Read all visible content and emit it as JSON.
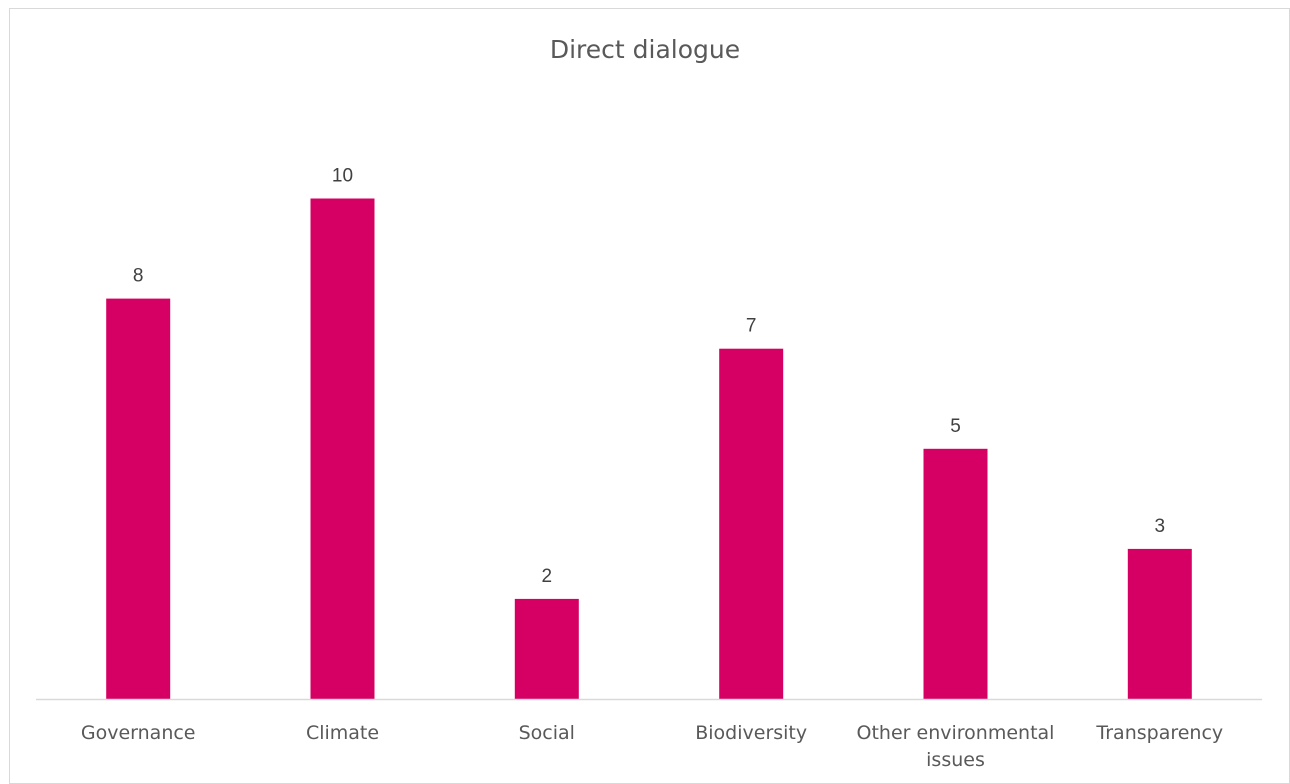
{
  "chart_data": {
    "type": "bar",
    "title": "Direct dialogue",
    "categories": [
      "Governance",
      "Climate",
      "Social",
      "Biodiversity",
      "Other environmental issues",
      "Transparency"
    ],
    "category_lines": [
      [
        "Governance"
      ],
      [
        "Climate"
      ],
      [
        "Social"
      ],
      [
        "Biodiversity"
      ],
      [
        "Other environmental",
        "issues"
      ],
      [
        "Transparency"
      ]
    ],
    "values": [
      8,
      10,
      2,
      7,
      5,
      3
    ],
    "xlabel": "",
    "ylabel": "",
    "ylim": [
      0,
      10
    ],
    "grid": false,
    "data_labels": true,
    "legend": "none",
    "colors": {
      "bar": "#d60064",
      "axis": "#d9d9d9",
      "frame": "#d9d9d9",
      "text": "#595959"
    }
  }
}
